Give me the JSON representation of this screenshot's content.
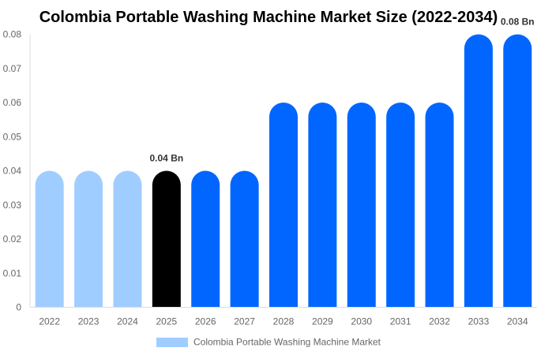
{
  "chart_data": {
    "type": "bar",
    "title": "Colombia Portable Washing Machine Market Size (2022-2034)",
    "categories": [
      "2022",
      "2023",
      "2024",
      "2025",
      "2026",
      "2027",
      "2028",
      "2029",
      "2030",
      "2031",
      "2032",
      "2033",
      "2034"
    ],
    "series": [
      {
        "name": "Colombia Portable Washing Machine Market",
        "values": [
          0.04,
          0.04,
          0.04,
          0.04,
          0.04,
          0.04,
          0.06,
          0.06,
          0.06,
          0.06,
          0.06,
          0.08,
          0.08
        ]
      }
    ],
    "bar_colors": [
      "#a0cdff",
      "#a0cdff",
      "#a0cdff",
      "#000000",
      "#0066ff",
      "#0066ff",
      "#0066ff",
      "#0066ff",
      "#0066ff",
      "#0066ff",
      "#0066ff",
      "#0066ff",
      "#0066ff"
    ],
    "data_labels": [
      {
        "category": "2025",
        "text": "0.04 Bn"
      },
      {
        "category": "2034",
        "text": "0.08 Bn"
      }
    ],
    "ylim": [
      0,
      0.08
    ],
    "yticks": [
      "0",
      "0.01",
      "0.02",
      "0.03",
      "0.04",
      "0.05",
      "0.06",
      "0.07",
      "0.08"
    ],
    "xlabel": "",
    "ylabel": "",
    "grid": false,
    "legend_position": "bottom",
    "legend_color": "#a0cdff"
  }
}
